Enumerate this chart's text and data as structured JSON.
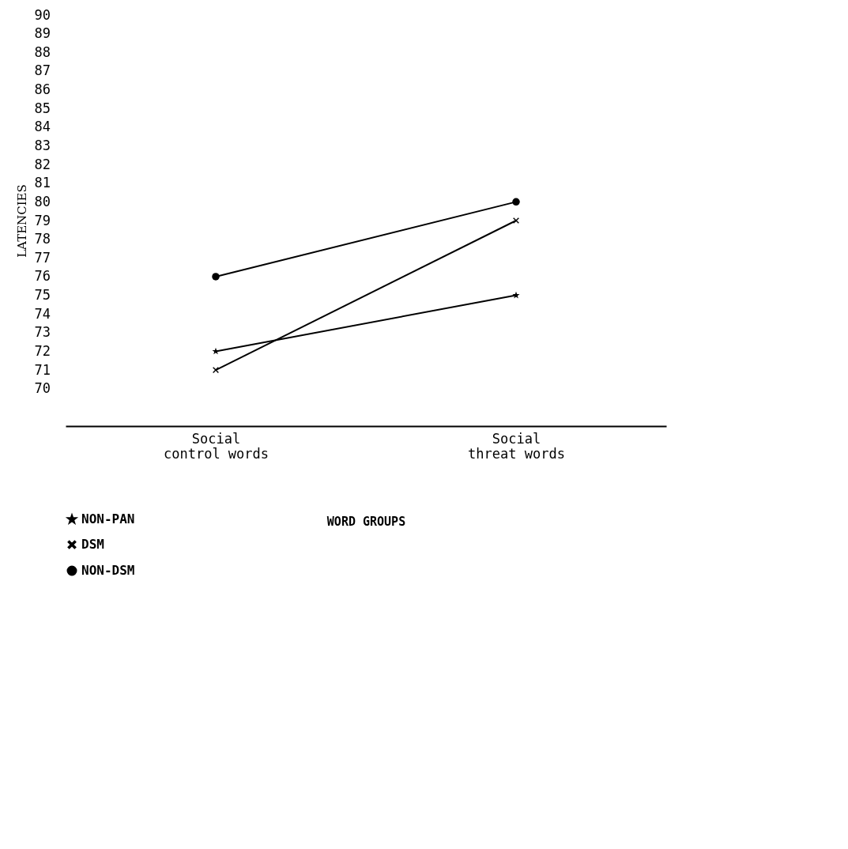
{
  "chart_data": {
    "type": "line",
    "xlabel": "WORD GROUPS",
    "ylabel": "LATENCIES",
    "categories": [
      "Social\ncontrol words",
      "Social\nthreat words"
    ],
    "series": [
      {
        "name": "NON-PAN",
        "color": "#000000",
        "values": [
          72,
          75
        ],
        "marker": "star"
      },
      {
        "name": "DSM",
        "color": "#000000",
        "values": [
          71,
          79
        ],
        "marker": "cross"
      },
      {
        "name": "NON-DSM",
        "color": "#000000",
        "values": [
          76,
          80
        ],
        "marker": "circle"
      }
    ],
    "ylim": [
      68,
      90
    ],
    "yticks": [
      70,
      71,
      72,
      73,
      74,
      75,
      76,
      77,
      78,
      79,
      80,
      81,
      82,
      83,
      84,
      85,
      86,
      87,
      88,
      89,
      90
    ],
    "grid": false,
    "legend": "bottom left",
    "line_style": "solid"
  }
}
